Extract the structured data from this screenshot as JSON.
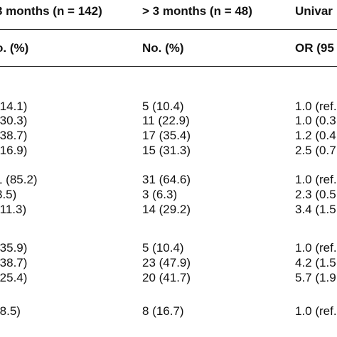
{
  "table": {
    "header": {
      "col1": "3 months (n = 142)",
      "col2": "> 3 months (n = 48)",
      "col3": "Univar"
    },
    "subheader": {
      "col1": "o. (%)",
      "col2": "No. (%)",
      "col3": "OR (95"
    },
    "rows": [
      {
        "col1": "(14.1)",
        "col2": "5 (10.4)",
        "col3": "1.0 (ref."
      },
      {
        "col1": "(30.3)",
        "col2": "11 (22.9)",
        "col3": "1.0 (0.3"
      },
      {
        "col1": "(38.7)",
        "col2": "17 (35.4)",
        "col3": "1.2 (0.4"
      },
      {
        "col1": "(16.9)",
        "col2": "15 (31.3)",
        "col3": "2.5 (0.7"
      },
      {
        "col1": "1 (85.2)",
        "col2": "31 (64.6)",
        "col3": "1.0 (ref."
      },
      {
        "col1": "3.5)",
        "col2": "3 (6.3)",
        "col3": "2.3 (0.5"
      },
      {
        "col1": "(11.3)",
        "col2": "14 (29.2)",
        "col3": "3.4 (1.5"
      },
      {
        "col1": "(35.9)",
        "col2": "5 (10.4)",
        "col3": "1.0 (ref."
      },
      {
        "col1": "(38.7)",
        "col2": "23 (47.9)",
        "col3": "4.2 (1.5"
      },
      {
        "col1": "(25.4)",
        "col2": "20 (41.7)",
        "col3": "5.7 (1.9"
      },
      {
        "col1": "(8.5)",
        "col2": "8 (16.7)",
        "col3": "1.0 (ref."
      }
    ]
  }
}
